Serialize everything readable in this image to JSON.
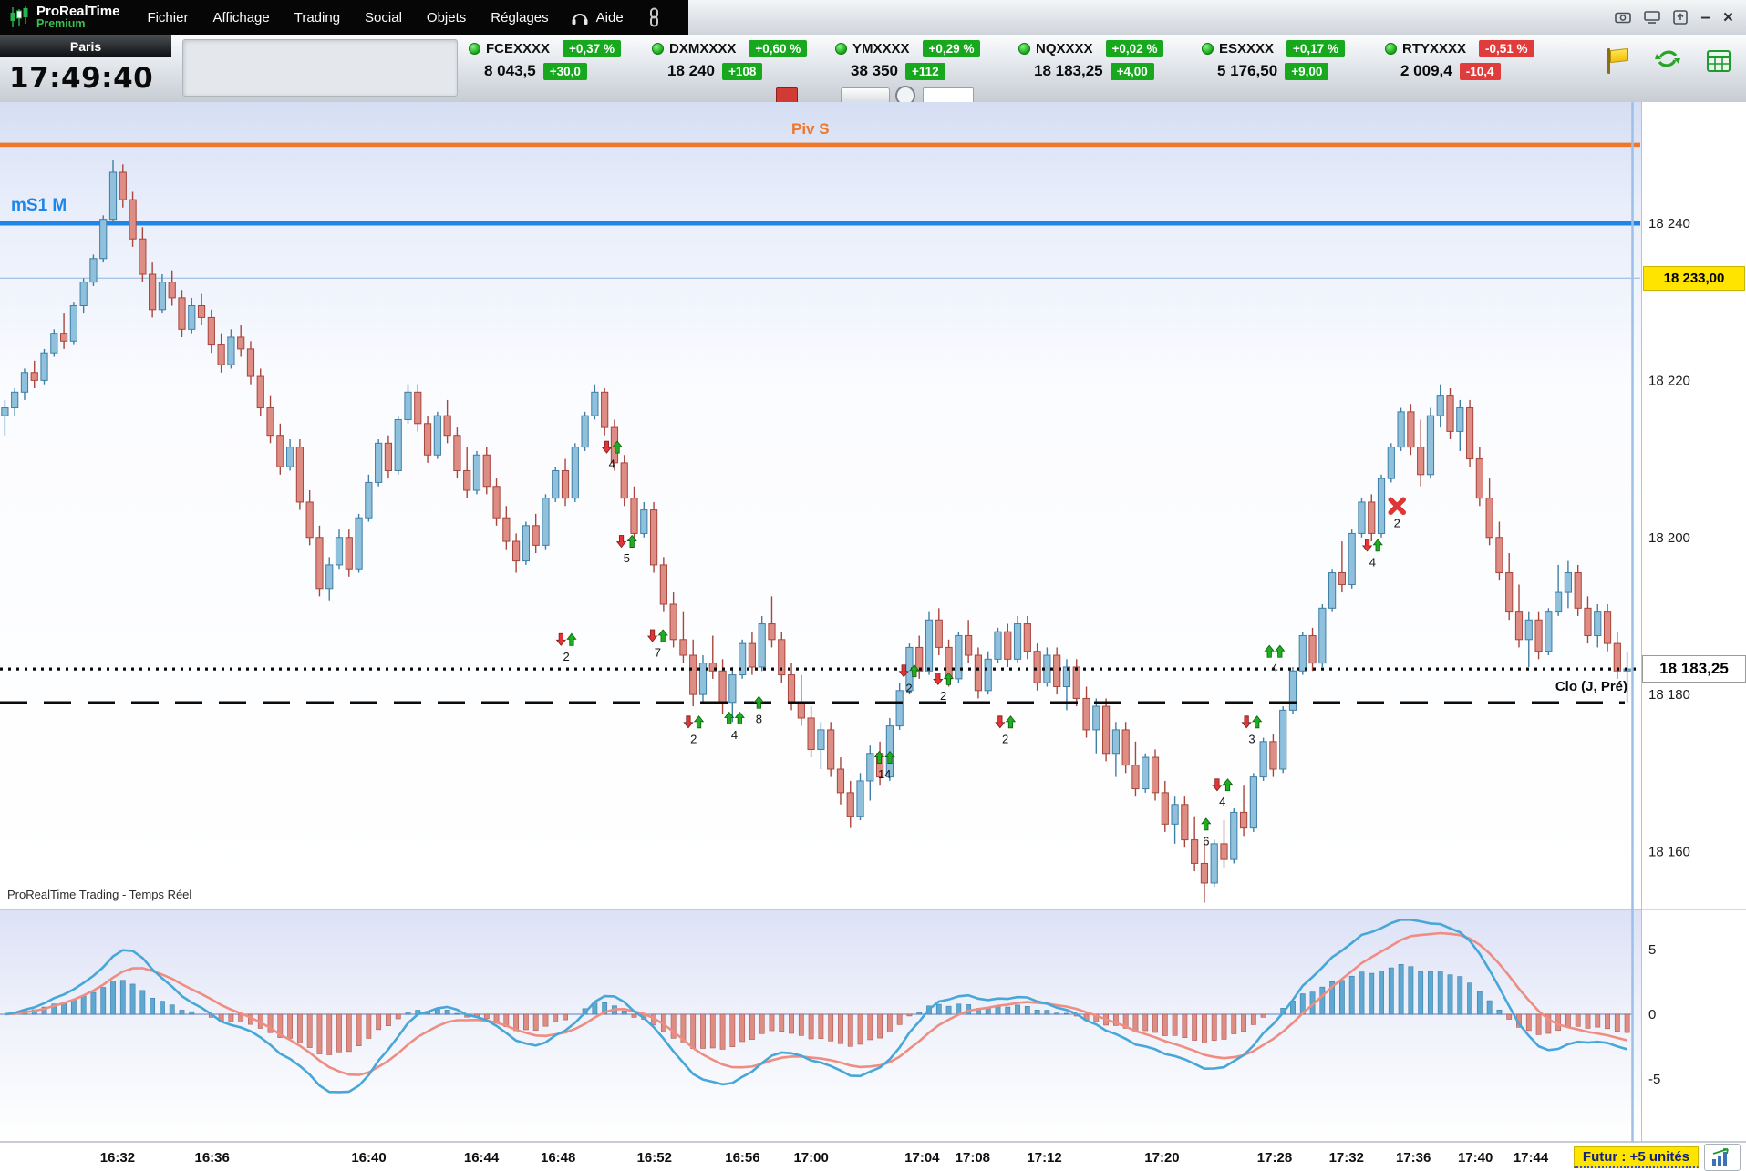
{
  "app": {
    "brand": {
      "name": "ProRealTime",
      "tier": "Premium"
    },
    "menu": [
      "Fichier",
      "Affichage",
      "Trading",
      "Social",
      "Objets",
      "Réglages"
    ],
    "help_label": "Aide",
    "window_controls": {
      "minimize": "–",
      "close": "×"
    }
  },
  "clock": {
    "market": "Paris",
    "time": "17:49:40"
  },
  "tickers": [
    {
      "symbol": "FCEXXXX",
      "pct": "+0,37 %",
      "price": "8 043,5",
      "change": "+30,0",
      "dir": "up"
    },
    {
      "symbol": "DXMXXXX",
      "pct": "+0,60 %",
      "price": "18 240",
      "change": "+108",
      "dir": "up"
    },
    {
      "symbol": "YMXXXX",
      "pct": "+0,29 %",
      "price": "38 350",
      "change": "+112",
      "dir": "up"
    },
    {
      "symbol": "NQXXXX",
      "pct": "+0,02 %",
      "price": "18 183,25",
      "change": "+4,00",
      "dir": "up"
    },
    {
      "symbol": "ESXXXX",
      "pct": "+0,17 %",
      "price": "5 176,50",
      "change": "+9,00",
      "dir": "up"
    },
    {
      "symbol": "RTYXXXX",
      "pct": "-0,51 %",
      "price": "2 009,4",
      "change": "-10,4",
      "dir": "down"
    }
  ],
  "chart": {
    "watermark": "ProRealTime Trading - Temps Réel",
    "levels": {
      "pivot": {
        "label": "Piv S",
        "price": 18250,
        "color": "#f0762a"
      },
      "ms1": {
        "label": "mS1 M",
        "price": 18240,
        "color": "#1d86ea"
      },
      "ref": {
        "label": "18 233,00",
        "price": 18233,
        "color": "#a8c6e6",
        "tag_bg": "#ffe400"
      },
      "last": {
        "label": "18 183,25",
        "price": 18183.25
      },
      "close": {
        "label": "Clo (J, Pré)",
        "price": 18179
      }
    },
    "y_axis": {
      "ticks": [
        18240,
        18220,
        18200,
        18180,
        18160
      ],
      "labels": [
        "18 240",
        "18 220",
        "18 200",
        "18 180",
        "18 160"
      ]
    },
    "x_axis": {
      "labels": [
        "16:32",
        "16:36",
        "16:40",
        "16:44",
        "16:48",
        "16:52",
        "16:56",
        "17:00",
        "17:04",
        "17:08",
        "17:12",
        "17:20",
        "17:28",
        "17:32",
        "17:36",
        "17:40",
        "17:44"
      ],
      "fractions": [
        0.072,
        0.13,
        0.226,
        0.295,
        0.342,
        0.401,
        0.455,
        0.497,
        0.565,
        0.596,
        0.64,
        0.712,
        0.781,
        0.825,
        0.866,
        0.904,
        0.938
      ]
    },
    "price_base": 18000,
    "candles": [
      [
        215.5,
        217.5,
        213,
        216.5
      ],
      [
        216.5,
        219,
        215.5,
        218.5
      ],
      [
        218.5,
        221.5,
        217.5,
        221
      ],
      [
        221,
        222.5,
        219,
        220
      ],
      [
        220,
        224,
        219.5,
        223.5
      ],
      [
        223.5,
        226.5,
        223,
        226
      ],
      [
        226,
        228.5,
        224,
        225
      ],
      [
        225,
        230,
        224.5,
        229.5
      ],
      [
        229.5,
        233,
        228.5,
        232.5
      ],
      [
        232.5,
        236,
        232,
        235.5
      ],
      [
        235.5,
        241,
        235,
        240.5
      ],
      [
        240.5,
        248,
        240,
        246.5
      ],
      [
        246.5,
        247.5,
        242,
        243
      ],
      [
        243,
        244,
        237,
        238
      ],
      [
        238,
        239.5,
        232.5,
        233.5
      ],
      [
        233.5,
        235,
        228,
        229
      ],
      [
        229,
        233.5,
        228.5,
        232.5
      ],
      [
        232.5,
        234,
        229.5,
        230.5
      ],
      [
        230.5,
        231.5,
        225.5,
        226.5
      ],
      [
        226.5,
        230.5,
        226,
        229.5
      ],
      [
        229.5,
        231,
        227,
        228
      ],
      [
        228,
        229,
        223.5,
        224.5
      ],
      [
        224.5,
        226,
        221,
        222
      ],
      [
        222,
        226.5,
        221.5,
        225.5
      ],
      [
        225.5,
        227,
        223,
        224
      ],
      [
        224,
        225,
        219.5,
        220.5
      ],
      [
        220.5,
        221.5,
        215.5,
        216.5
      ],
      [
        216.5,
        218,
        212,
        213
      ],
      [
        213,
        214.5,
        208,
        209
      ],
      [
        209,
        212.5,
        208.5,
        211.5
      ],
      [
        211.5,
        212.5,
        203.5,
        204.5
      ],
      [
        204.5,
        206,
        199,
        200
      ],
      [
        200,
        201.5,
        192.5,
        193.5
      ],
      [
        193.5,
        197.5,
        192,
        196.5
      ],
      [
        196.5,
        201,
        196,
        200
      ],
      [
        200,
        201,
        195,
        196
      ],
      [
        196,
        203,
        195.5,
        202.5
      ],
      [
        202.5,
        208,
        202,
        207
      ],
      [
        207,
        212.5,
        206.5,
        212
      ],
      [
        212,
        213,
        207.5,
        208.5
      ],
      [
        208.5,
        215.5,
        208,
        215
      ],
      [
        215,
        219.5,
        214.5,
        218.5
      ],
      [
        218.5,
        219.5,
        213.5,
        214.5
      ],
      [
        214.5,
        215.5,
        209.5,
        210.5
      ],
      [
        210.5,
        216,
        210,
        215.5
      ],
      [
        215.5,
        217.5,
        212,
        213
      ],
      [
        213,
        214,
        207.5,
        208.5
      ],
      [
        208.5,
        211.5,
        205,
        206
      ],
      [
        206,
        211,
        205.5,
        210.5
      ],
      [
        210.5,
        211.5,
        205.5,
        206.5
      ],
      [
        206.5,
        207.5,
        201.5,
        202.5
      ],
      [
        202.5,
        204,
        198.5,
        199.5
      ],
      [
        199.5,
        200.5,
        195.5,
        197
      ],
      [
        197,
        202,
        196.5,
        201.5
      ],
      [
        201.5,
        203,
        198,
        199
      ],
      [
        199,
        205.5,
        198.5,
        205
      ],
      [
        205,
        209,
        204.5,
        208.5
      ],
      [
        208.5,
        210,
        204,
        205
      ],
      [
        205,
        212,
        204.5,
        211.5
      ],
      [
        211.5,
        216,
        211,
        215.5
      ],
      [
        215.5,
        219.5,
        215,
        218.5
      ],
      [
        218.5,
        219,
        213,
        214
      ],
      [
        214,
        215,
        208.5,
        209.5
      ],
      [
        209.5,
        210.5,
        204,
        205
      ],
      [
        205,
        206.5,
        199.5,
        200.5
      ],
      [
        200.5,
        204.5,
        200,
        203.5
      ],
      [
        203.5,
        204.5,
        195.5,
        196.5
      ],
      [
        196.5,
        197.5,
        190.5,
        191.5
      ],
      [
        191.5,
        193,
        186,
        187
      ],
      [
        187,
        190.5,
        184,
        185
      ],
      [
        185,
        187,
        178.5,
        180
      ],
      [
        180,
        185,
        179,
        184
      ],
      [
        184,
        187.5,
        182,
        183
      ],
      [
        183,
        184.5,
        177.5,
        179
      ],
      [
        179,
        183.5,
        176.5,
        182.5
      ],
      [
        182.5,
        187,
        182,
        186.5
      ],
      [
        186.5,
        188,
        182.5,
        183.5
      ],
      [
        183.5,
        190,
        183,
        189
      ],
      [
        189,
        192.5,
        186,
        187
      ],
      [
        187,
        188,
        181.5,
        182.5
      ],
      [
        182.5,
        184,
        178,
        179
      ],
      [
        179,
        182.5,
        176,
        177
      ],
      [
        177,
        178.5,
        172,
        173
      ],
      [
        173,
        176.5,
        170.5,
        175.5
      ],
      [
        175.5,
        176.5,
        169.5,
        170.5
      ],
      [
        170.5,
        172,
        166,
        167.5
      ],
      [
        167.5,
        169,
        163,
        164.5
      ],
      [
        164.5,
        170,
        164,
        169
      ],
      [
        169,
        173.5,
        166.5,
        172.5
      ],
      [
        172.5,
        174,
        168.5,
        169.5
      ],
      [
        169.5,
        177,
        169,
        176
      ],
      [
        176,
        181.5,
        175.5,
        180.5
      ],
      [
        180.5,
        186.5,
        180,
        186
      ],
      [
        186,
        187.5,
        182,
        183
      ],
      [
        183,
        190.5,
        182.5,
        189.5
      ],
      [
        189.5,
        191,
        185,
        186
      ],
      [
        186,
        187,
        181,
        182
      ],
      [
        182,
        188,
        181.5,
        187.5
      ],
      [
        187.5,
        189.5,
        184,
        185
      ],
      [
        185,
        186,
        179.5,
        180.5
      ],
      [
        180.5,
        185.5,
        180,
        184.5
      ],
      [
        184.5,
        188.5,
        184,
        188
      ],
      [
        188,
        189,
        183.5,
        184.5
      ],
      [
        184.5,
        190,
        184,
        189
      ],
      [
        189,
        190,
        184.5,
        185.5
      ],
      [
        185.5,
        186.5,
        180.5,
        181.5
      ],
      [
        181.5,
        186,
        181,
        185
      ],
      [
        185,
        186,
        180,
        181
      ],
      [
        181,
        184.5,
        178,
        183.5
      ],
      [
        183.5,
        184.5,
        178.5,
        179.5
      ],
      [
        179.5,
        181,
        174.5,
        175.5
      ],
      [
        175.5,
        179.5,
        172.5,
        178.5
      ],
      [
        178.5,
        179.5,
        171.5,
        172.5
      ],
      [
        172.5,
        176.5,
        169.5,
        175.5
      ],
      [
        175.5,
        176.5,
        170,
        171
      ],
      [
        171,
        174,
        167,
        168
      ],
      [
        168,
        172.5,
        167.5,
        172
      ],
      [
        172,
        173,
        166.5,
        167.5
      ],
      [
        167.5,
        169,
        162.5,
        163.5
      ],
      [
        163.5,
        167,
        161,
        166
      ],
      [
        166,
        167,
        160.5,
        161.5
      ],
      [
        161.5,
        164.5,
        157.5,
        158.5
      ],
      [
        158.5,
        161,
        153.5,
        156
      ],
      [
        156,
        161.5,
        155.5,
        161
      ],
      [
        161,
        164,
        158,
        159
      ],
      [
        159,
        165.5,
        158.5,
        165
      ],
      [
        165,
        168.5,
        162,
        163
      ],
      [
        163,
        170,
        162.5,
        169.5
      ],
      [
        169.5,
        174.5,
        169,
        174
      ],
      [
        174,
        175,
        169.5,
        170.5
      ],
      [
        170.5,
        178.5,
        170,
        178
      ],
      [
        178,
        183.5,
        177.5,
        183
      ],
      [
        183,
        188,
        182.5,
        187.5
      ],
      [
        187.5,
        188.5,
        183,
        184
      ],
      [
        184,
        191.5,
        183.5,
        191
      ],
      [
        191,
        196,
        190.5,
        195.5
      ],
      [
        195.5,
        199.5,
        193,
        194
      ],
      [
        194,
        201,
        193.5,
        200.5
      ],
      [
        200.5,
        205,
        200,
        204.5
      ],
      [
        204.5,
        205.5,
        199.5,
        200.5
      ],
      [
        200.5,
        208,
        200,
        207.5
      ],
      [
        207.5,
        212,
        207,
        211.5
      ],
      [
        211.5,
        216.5,
        211,
        216
      ],
      [
        216,
        217,
        210.5,
        211.5
      ],
      [
        211.5,
        215,
        206.5,
        208
      ],
      [
        208,
        216.5,
        207.5,
        215.5
      ],
      [
        215.5,
        219.5,
        214,
        218
      ],
      [
        218,
        219,
        212.5,
        213.5
      ],
      [
        213.5,
        217.5,
        211,
        216.5
      ],
      [
        216.5,
        217.5,
        209,
        210
      ],
      [
        210,
        211.5,
        204,
        205
      ],
      [
        205,
        207.5,
        199,
        200
      ],
      [
        200,
        202,
        194.5,
        195.5
      ],
      [
        195.5,
        198,
        189.5,
        190.5
      ],
      [
        190.5,
        194,
        186,
        187
      ],
      [
        187,
        190.5,
        183.5,
        189.5
      ],
      [
        189.5,
        190.5,
        184.5,
        185.5
      ],
      [
        185.5,
        191,
        185,
        190.5
      ],
      [
        190.5,
        196.5,
        190,
        193
      ],
      [
        193,
        197,
        191,
        195.5
      ],
      [
        195.5,
        196.5,
        190,
        191
      ],
      [
        191,
        192.5,
        186.5,
        187.5
      ],
      [
        187.5,
        191.5,
        186,
        190.5
      ],
      [
        190.5,
        191.5,
        185.5,
        186.5
      ],
      [
        186.5,
        188,
        182,
        183
      ],
      [
        183,
        185.5,
        179,
        183.25
      ]
    ],
    "markers": [
      {
        "xf": 0.375,
        "price": 18211.5,
        "label": "4",
        "icons": [
          "down",
          "up"
        ]
      },
      {
        "xf": 0.384,
        "price": 18199.5,
        "label": "5",
        "icons": [
          "down",
          "up"
        ]
      },
      {
        "xf": 0.347,
        "price": 18187,
        "label": "2",
        "icons": [
          "down",
          "up"
        ]
      },
      {
        "xf": 0.403,
        "price": 18187.5,
        "label": "7",
        "icons": [
          "down",
          "up"
        ]
      },
      {
        "xf": 0.425,
        "price": 18176.5,
        "label": "2",
        "icons": [
          "down",
          "up"
        ]
      },
      {
        "xf": 0.45,
        "price": 18177,
        "label": "4",
        "icons": [
          "up",
          "up"
        ]
      },
      {
        "xf": 0.465,
        "price": 18179,
        "label": "8",
        "icons": [
          "up"
        ]
      },
      {
        "xf": 0.542,
        "price": 18172,
        "label": "14",
        "icons": [
          "up",
          "up"
        ]
      },
      {
        "xf": 0.557,
        "price": 18183,
        "label": "2",
        "icons": [
          "down",
          "up"
        ]
      },
      {
        "xf": 0.578,
        "price": 18182,
        "label": "2",
        "icons": [
          "down",
          "up"
        ]
      },
      {
        "xf": 0.616,
        "price": 18176.5,
        "label": "2",
        "icons": [
          "down",
          "up"
        ]
      },
      {
        "xf": 0.739,
        "price": 18163.5,
        "label": "6",
        "icons": [
          "up"
        ]
      },
      {
        "xf": 0.749,
        "price": 18168.5,
        "label": "4",
        "icons": [
          "down",
          "up"
        ]
      },
      {
        "xf": 0.767,
        "price": 18176.5,
        "label": "3",
        "icons": [
          "down",
          "up"
        ]
      },
      {
        "xf": 0.781,
        "price": 18185.5,
        "label": "4",
        "icons": [
          "up",
          "up"
        ]
      },
      {
        "xf": 0.841,
        "price": 18199,
        "label": "4",
        "icons": [
          "down",
          "up"
        ]
      },
      {
        "xf": 0.856,
        "price": 18204,
        "label": "2",
        "icons": [
          "x"
        ]
      }
    ],
    "colors": {
      "up_fill": "#8fc1dd",
      "up_border": "#3f7ea6",
      "down_fill": "#dd8d84",
      "down_border": "#a8453c",
      "hist_up": "#5fa8d2",
      "hist_down": "#dd8d84",
      "line_fast": "#46a7d8",
      "line_slow": "#ef8d82",
      "arrow_up": "#1fae1f",
      "arrow_down": "#e23636",
      "x_mark": "#e03535"
    }
  },
  "indicator": {
    "ticks": [
      "5",
      "0",
      "-5"
    ],
    "tick_values": [
      5,
      0,
      -5
    ]
  },
  "footer": {
    "future_label": "Futur : +5 unités"
  }
}
